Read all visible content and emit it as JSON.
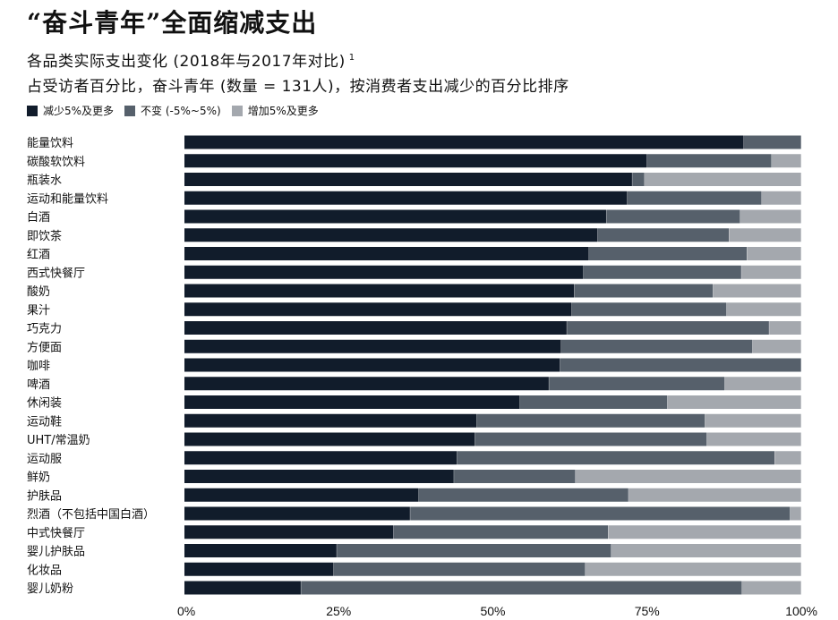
{
  "header": {
    "title": "“奋斗青年”全面缩减支出",
    "subtitle1": "各品类实际支出变化 (2018年与2017年对比)",
    "footnote_ref": "1",
    "subtitle2": "占受访者百分比，奋斗青年 (数量 = 131人)，按消费者支出减少的百分比排序"
  },
  "colors": {
    "decrease": "#111c2b",
    "same": "#56606b",
    "increase": "#a4a8ae"
  },
  "chart_data": {
    "type": "bar",
    "orientation": "horizontal",
    "stacked": true,
    "categories": [
      "能量饮料",
      "碳酸软饮料",
      "瓶装水",
      "运动和能量饮料",
      "白酒",
      "即饮茶",
      "红酒",
      "西式快餐厅",
      "酸奶",
      "果汁",
      "巧克力",
      "方便面",
      "咖啡",
      "啤酒",
      "休闲装",
      "运动鞋",
      "UHT/常温奶",
      "运动服",
      "鲜奶",
      "护肤品",
      "烈酒（不包括中国白酒）",
      "中式快餐厅",
      "婴儿护肤品",
      "化妆品",
      "婴儿奶粉"
    ],
    "series": [
      {
        "name": "减少5%及更多",
        "values": [
          90.7,
          75,
          72.6,
          71.8,
          68.4,
          67,
          65.6,
          64.7,
          63.2,
          62.8,
          62,
          61.1,
          60.9,
          59.1,
          54.4,
          47.4,
          47.1,
          44.2,
          43.7,
          38,
          36.6,
          33.9,
          24.7,
          24.2,
          18.9
        ]
      },
      {
        "name": "不变 (-5%~5%)",
        "values": [
          9.3,
          20.2,
          2,
          21.8,
          21.7,
          21.3,
          25.6,
          25.6,
          22.5,
          25.1,
          32.8,
          31,
          39.1,
          28.5,
          23.9,
          37,
          37.6,
          51.5,
          19.7,
          34,
          61.6,
          34.8,
          44.5,
          40.8,
          71.5
        ]
      },
      {
        "name": "增加5%及更多",
        "values": [
          0,
          4.8,
          25.4,
          6.4,
          9.9,
          11.7,
          8.8,
          9.7,
          14.3,
          12.1,
          5.2,
          7.9,
          0,
          12.4,
          21.7,
          15.6,
          15.3,
          4.3,
          36.6,
          28,
          1.8,
          31.3,
          30.8,
          35,
          9.6
        ]
      }
    ],
    "xlim": [
      0,
      100
    ],
    "xticks": [
      "0%",
      "25%",
      "50%",
      "75%",
      "100%"
    ],
    "legend_position": "top-left"
  }
}
